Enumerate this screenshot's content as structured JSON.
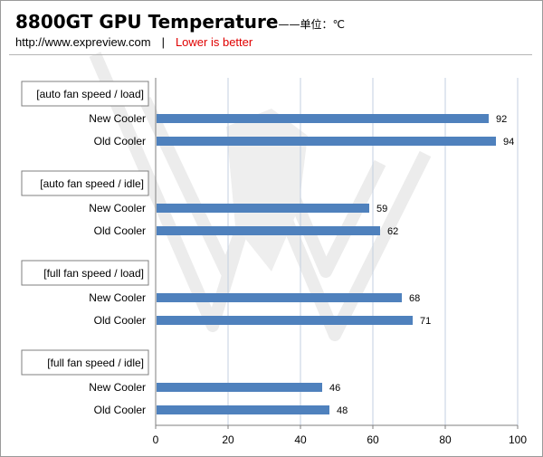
{
  "header": {
    "title": "8800GT GPU Temperature",
    "unit_note": "——单位：℃",
    "site": "http://www.expreview.com",
    "separator": "|",
    "note": "Lower is better",
    "note_color": "#e00000"
  },
  "chart_data": {
    "type": "bar",
    "orientation": "horizontal",
    "title": "8800GT GPU Temperature",
    "xlim": [
      0,
      100
    ],
    "x_ticks": [
      0,
      20,
      40,
      60,
      80,
      100
    ],
    "grid": true,
    "bar_color": "#4f81bd",
    "groups": [
      {
        "label": "[auto fan speed / load]",
        "bars": [
          {
            "category": "New Cooler",
            "value": 92
          },
          {
            "category": "Old Cooler",
            "value": 94
          }
        ]
      },
      {
        "label": "[auto fan speed / idle]",
        "bars": [
          {
            "category": "New Cooler",
            "value": 59
          },
          {
            "category": "Old Cooler",
            "value": 62
          }
        ]
      },
      {
        "label": "[full fan speed / load]",
        "bars": [
          {
            "category": "New Cooler",
            "value": 68
          },
          {
            "category": "Old Cooler",
            "value": 71
          }
        ]
      },
      {
        "label": "[full fan speed / idle]",
        "bars": [
          {
            "category": "New Cooler",
            "value": 46
          },
          {
            "category": "Old Cooler",
            "value": 48
          }
        ]
      }
    ]
  }
}
